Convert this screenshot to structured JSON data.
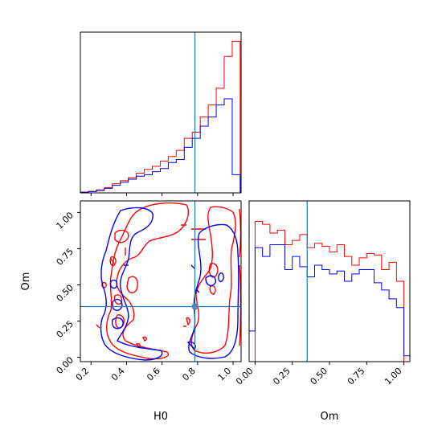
{
  "chart_data": {
    "type": "corner",
    "params": [
      "H0",
      "Om"
    ],
    "truth": {
      "H0": 0.785,
      "Om": 0.35
    },
    "truth_color": "#1f77b4",
    "series": [
      {
        "color": "#ff0000"
      },
      {
        "color": "#0000ff"
      }
    ],
    "panels": [
      {
        "id": "hist-H0",
        "type": "histogram",
        "x_param": "H0",
        "xlim": [
          0.14,
          1.045
        ],
        "ylim": [
          0,
          1.06
        ],
        "bin_edges": [
          0.14,
          0.185,
          0.23,
          0.275,
          0.32,
          0.365,
          0.41,
          0.455,
          0.5,
          0.545,
          0.59,
          0.635,
          0.68,
          0.725,
          0.77,
          0.815,
          0.86,
          0.905,
          0.95,
          0.995,
          1.04
        ],
        "series_counts": [
          [
            0.005,
            0.01,
            0.02,
            0.035,
            0.06,
            0.08,
            0.1,
            0.13,
            0.155,
            0.175,
            0.21,
            0.24,
            0.28,
            0.36,
            0.4,
            0.5,
            0.58,
            0.69,
            0.9,
            1.0
          ],
          [
            0.003,
            0.008,
            0.016,
            0.03,
            0.05,
            0.07,
            0.09,
            0.11,
            0.12,
            0.14,
            0.16,
            0.2,
            0.22,
            0.3,
            0.36,
            0.44,
            0.5,
            0.58,
            0.62,
            0.12
          ]
        ],
        "tick_values": [
          0.2,
          0.4,
          0.6,
          0.8,
          1.0
        ]
      },
      {
        "id": "hist-Om",
        "type": "histogram",
        "x_param": "Om",
        "xlim": [
          -0.04,
          1.04
        ],
        "ylim": [
          0,
          1.1
        ],
        "bin_edges": [
          -0.04,
          0.0,
          0.05,
          0.1,
          0.15,
          0.2,
          0.25,
          0.3,
          0.35,
          0.4,
          0.45,
          0.5,
          0.55,
          0.6,
          0.65,
          0.7,
          0.75,
          0.8,
          0.85,
          0.9,
          0.95,
          1.0,
          1.04
        ],
        "series_counts": [
          [
            0.0,
            0.96,
            0.94,
            0.88,
            0.9,
            0.8,
            0.83,
            0.87,
            0.78,
            0.81,
            0.79,
            0.75,
            0.8,
            0.72,
            0.66,
            0.71,
            0.74,
            0.73,
            0.63,
            0.68,
            0.55,
            0.0
          ],
          [
            0.21,
            0.78,
            0.72,
            0.8,
            0.8,
            0.63,
            0.72,
            0.65,
            0.58,
            0.66,
            0.63,
            0.6,
            0.62,
            0.55,
            0.6,
            0.63,
            0.63,
            0.54,
            0.49,
            0.43,
            0.37,
            0.04
          ]
        ],
        "tick_values": [
          0.0,
          0.25,
          0.5,
          0.75,
          1.0
        ],
        "tick_labels": [
          "0.00",
          "0.25",
          "0.50",
          "0.75",
          "1.00"
        ]
      },
      {
        "id": "contour-H0-Om",
        "type": "contour",
        "x_param": "H0",
        "y_param": "Om",
        "xlim": [
          0.14,
          1.045
        ],
        "ylim": [
          -0.03,
          1.08
        ],
        "x_ticks": [
          0.2,
          0.4,
          0.6,
          0.8,
          1.0
        ],
        "y_ticks": [
          0.0,
          0.25,
          0.5,
          0.75,
          1.0
        ],
        "y_tick_labels": [
          "0.00",
          "0.25",
          "0.50",
          "0.75",
          "1.00"
        ],
        "x_label": "H0",
        "y_label": "Om"
      }
    ],
    "tick_labels_H0": [
      "0.2",
      "0.4",
      "0.6",
      "0.8",
      "1.0"
    ],
    "tick_labels_Om": [
      "0.00",
      "0.25",
      "0.50",
      "0.75",
      "1.00"
    ]
  }
}
